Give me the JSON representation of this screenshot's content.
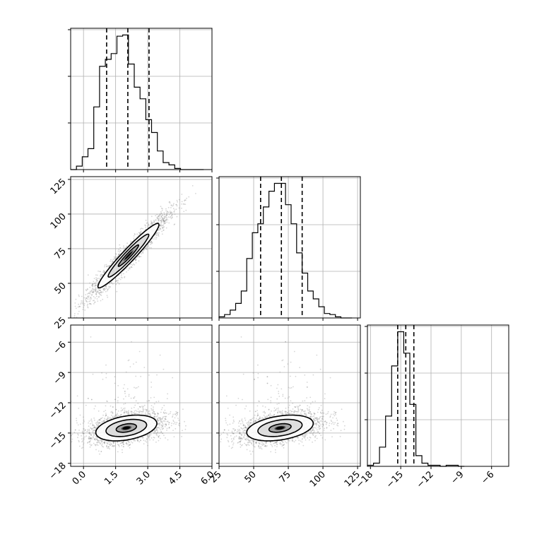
{
  "chart_data": {
    "type": "corner",
    "grid": true,
    "parameters": [
      {
        "ticks": [
          0.0,
          1.5,
          3.0,
          4.5,
          6.0
        ],
        "tick_labels": [
          "0.0",
          "1.5",
          "3.0",
          "4.5",
          "6.0"
        ],
        "range": [
          -0.6,
          6.0
        ],
        "quantiles": [
          1.08,
          2.07,
          3.06
        ],
        "histogram": {
          "bin_edges": [
            -0.6,
            -0.33,
            -0.06,
            0.21,
            0.48,
            0.75,
            1.02,
            1.29,
            1.56,
            1.83,
            2.1,
            2.37,
            2.64,
            2.91,
            3.18,
            3.45,
            3.72,
            3.99,
            4.26,
            4.53,
            4.8,
            5.07,
            5.34,
            5.61
          ],
          "counts": [
            0,
            3,
            11,
            18,
            54,
            89,
            95,
            100,
            115,
            116,
            91,
            71,
            61,
            43,
            32,
            16,
            6,
            4,
            1,
            0,
            0,
            0,
            0
          ]
        }
      },
      {
        "ticks": [
          25,
          50,
          75,
          100,
          125
        ],
        "tick_labels": [
          "25",
          "50",
          "75",
          "100",
          "125"
        ],
        "range": [
          25,
          127
        ],
        "quantiles": [
          55,
          70,
          85
        ],
        "histogram": {
          "bin_edges": [
            25,
            29,
            33,
            37,
            41,
            45,
            49,
            53,
            57,
            61,
            65,
            69,
            73,
            77,
            81,
            85,
            89,
            93,
            97,
            101,
            105,
            109,
            113,
            117,
            121
          ],
          "counts": [
            1,
            3,
            7,
            13,
            24,
            53,
            76,
            84,
            99,
            113,
            120,
            120,
            101,
            84,
            58,
            40,
            24,
            17,
            10,
            4,
            3,
            1,
            0,
            0
          ]
        }
      },
      {
        "ticks": [
          -18,
          -15,
          -12,
          -9,
          -6
        ],
        "tick_labels": [
          "−18",
          "−15",
          "−12",
          "−9",
          "−6"
        ],
        "range": [
          -18.3,
          -4.3
        ],
        "quantiles": [
          -15.3,
          -14.5,
          -13.7
        ],
        "histogram": {
          "bin_edges": [
            -18.3,
            -17.7,
            -17.1,
            -16.5,
            -15.9,
            -15.3,
            -14.7,
            -14.1,
            -13.5,
            -12.9,
            -12.3,
            -11.7,
            -11.1,
            -10.5,
            -9.9,
            -9.3,
            -8.7
          ],
          "counts": [
            1,
            3,
            18,
            47,
            94,
            126,
            106,
            58,
            10,
            3,
            1,
            1,
            0,
            1,
            1,
            0
          ]
        }
      }
    ],
    "scatter_2d": [
      {
        "x_param": 0,
        "y_param": 1,
        "center": [
          2.1,
          70
        ],
        "sd": [
          0.95,
          15.5
        ],
        "corr": 0.96,
        "level_sizes": [
          0.25,
          0.5,
          1.0,
          1.5
        ]
      },
      {
        "x_param": 0,
        "y_param": 2,
        "center": [
          2.0,
          -14.5
        ],
        "sd": [
          0.95,
          0.85
        ],
        "corr": 0.35,
        "level_sizes": [
          0.25,
          0.5,
          1.0,
          1.5
        ]
      },
      {
        "x_param": 1,
        "y_param": 2,
        "center": [
          69,
          -14.5
        ],
        "sd": [
          16,
          0.85
        ],
        "corr": 0.35,
        "level_sizes": [
          0.25,
          0.5,
          1.0,
          1.5
        ]
      }
    ]
  }
}
